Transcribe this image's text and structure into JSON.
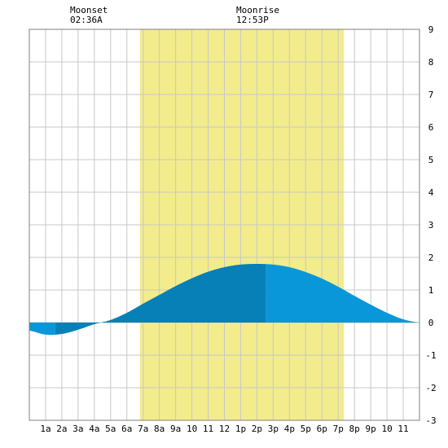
{
  "colors": {
    "daylight": "#f2ec8c",
    "tide_night": "#0a97d9",
    "tide_day": "#0780b8",
    "grid": "#c8c8c8",
    "frame": "#808080",
    "background": "#ffffff"
  },
  "annotations": {
    "moonset": {
      "label": "Moonset",
      "time": "02:36A",
      "hour": 2.6
    },
    "moonrise": {
      "label": "Moonrise",
      "time": "12:53P",
      "hour": 12.883
    }
  },
  "chart_data": {
    "type": "area",
    "title": "",
    "xlabel": "",
    "ylabel": "",
    "xlim": [
      0,
      24
    ],
    "ylim": [
      -3,
      9
    ],
    "grid": true,
    "x_tick_labels": [
      "1a",
      "2a",
      "3a",
      "4a",
      "5a",
      "6a",
      "7a",
      "8a",
      "9a",
      "10",
      "11",
      "12",
      "1p",
      "2p",
      "3p",
      "4p",
      "5p",
      "6p",
      "7p",
      "8p",
      "9p",
      "10",
      "11"
    ],
    "y_tick_labels": [
      "9",
      "8",
      "7",
      "6",
      "5",
      "4",
      "3",
      "2",
      "1",
      "0",
      "-1",
      "-2",
      "-3"
    ],
    "daylight": {
      "start_hour": 6.8,
      "end_hour": 19.35
    },
    "tide_day_band": {
      "start_hour": 1.6,
      "end_hour": 14.55
    },
    "series": [
      {
        "x": [
          0,
          1,
          2,
          3,
          4,
          5,
          6,
          7,
          8,
          9,
          10,
          11,
          12,
          13,
          14,
          15,
          16,
          17,
          18,
          19,
          20,
          21,
          22,
          23,
          24
        ],
        "y": [
          -0.25,
          -0.37,
          -0.35,
          -0.22,
          -0.05,
          0.08,
          0.3,
          0.58,
          0.85,
          1.12,
          1.36,
          1.56,
          1.7,
          1.78,
          1.8,
          1.78,
          1.7,
          1.55,
          1.35,
          1.1,
          0.82,
          0.55,
          0.3,
          0.1,
          0.0
        ]
      }
    ]
  }
}
